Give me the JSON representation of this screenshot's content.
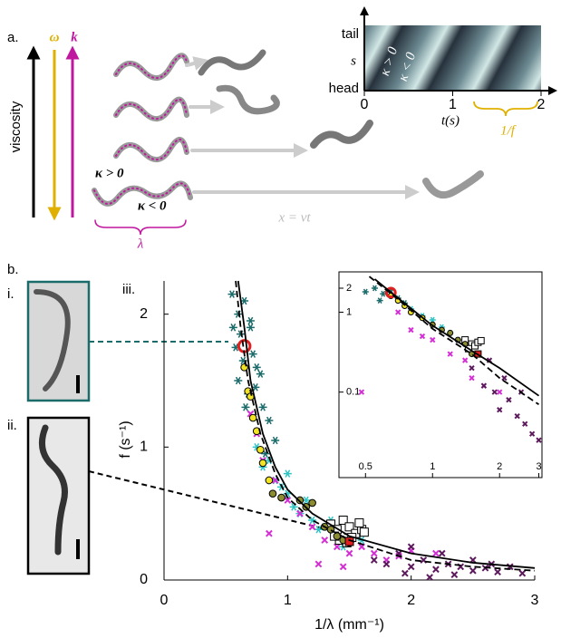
{
  "panel_a": {
    "label": "a.",
    "viscosity": "viscosity",
    "omega": "ω",
    "k": "k",
    "kappa_pos": "κ > 0",
    "kappa_neg": "κ < 0",
    "lambda": "λ",
    "motion": "x = vt",
    "kymograph": {
      "tail": "tail",
      "s": "s",
      "head": "head",
      "xlabel": "t(s)",
      "xlim": [
        0,
        2
      ],
      "xticks": [
        0,
        1,
        2
      ],
      "period": "1/f",
      "kappa_pos": "κ > 0",
      "kappa_neg": "κ < 0"
    }
  },
  "panel_b": {
    "label": "b.",
    "image_i": "i.",
    "image_ii": "ii.",
    "plot_iii": "iii."
  },
  "chart_data": [
    {
      "type": "scatter",
      "xlabel": "1/λ (mm⁻¹)",
      "ylabel": "f (s⁻¹)",
      "xlim": [
        0,
        3
      ],
      "ylim": [
        0,
        2.25
      ],
      "xticks": [
        0,
        1,
        2,
        3
      ],
      "yticks": [
        0,
        1,
        2
      ],
      "series": [
        {
          "marker": "asterisk",
          "color": "#1c6b6b",
          "x": [
            0.55,
            0.6,
            0.62,
            0.65,
            0.7,
            0.72,
            0.75,
            0.6,
            0.68,
            0.8,
            0.58,
            0.7,
            0.78,
            0.85,
            0.64,
            0.74,
            0.9,
            0.66,
            0.56,
            0.82
          ],
          "values": [
            2.15,
            2.0,
            1.85,
            2.1,
            1.95,
            1.7,
            1.6,
            1.5,
            1.4,
            1.3,
            1.75,
            1.9,
            1.55,
            1.2,
            1.65,
            1.45,
            1.05,
            1.3,
            1.9,
            0.95
          ]
        },
        {
          "marker": "asterisk",
          "color": "#2ec4c4",
          "x": [
            0.75,
            0.8,
            0.9,
            1.0,
            1.05,
            1.1,
            0.95,
            1.2,
            1.3,
            1.4,
            1.5,
            0.85,
            1.15,
            1.25,
            1.0,
            1.35,
            1.6,
            1.45
          ],
          "values": [
            1.0,
            0.85,
            0.75,
            0.65,
            0.55,
            0.5,
            0.7,
            0.45,
            0.4,
            0.35,
            0.32,
            0.9,
            0.6,
            0.38,
            0.8,
            0.45,
            0.3,
            0.25
          ]
        },
        {
          "marker": "cross",
          "color": "#d42fd4",
          "x": [
            0.7,
            0.75,
            0.8,
            0.9,
            1.0,
            1.1,
            1.2,
            1.3,
            1.4,
            1.5,
            1.6,
            1.7,
            1.8,
            1.9,
            2.0,
            1.25,
            1.45,
            0.85,
            2.2,
            1.55
          ],
          "values": [
            1.25,
            1.1,
            0.9,
            0.75,
            0.6,
            0.5,
            0.4,
            0.3,
            0.25,
            0.2,
            0.25,
            0.2,
            0.15,
            0.18,
            0.22,
            0.12,
            0.1,
            0.35,
            0.2,
            0.35
          ]
        },
        {
          "marker": "cross",
          "color": "#5c1a5c",
          "x": [
            1.7,
            1.8,
            1.9,
            2.0,
            2.1,
            2.2,
            2.3,
            2.4,
            2.5,
            2.6,
            2.7,
            2.8,
            2.9,
            2.0,
            2.25,
            2.5,
            1.95,
            2.35,
            2.65,
            2.15
          ],
          "values": [
            0.15,
            0.12,
            0.2,
            0.1,
            0.15,
            0.08,
            0.12,
            0.1,
            0.07,
            0.09,
            0.06,
            0.1,
            0.05,
            0.25,
            0.2,
            0.15,
            0.05,
            0.04,
            0.12,
            0.02
          ]
        },
        {
          "marker": "square",
          "color": "#ffffff",
          "x": [
            1.35,
            1.4,
            1.45,
            1.5,
            1.55,
            1.6,
            1.42,
            1.52,
            1.48,
            1.38,
            1.58,
            1.62
          ],
          "values": [
            0.42,
            0.38,
            0.45,
            0.4,
            0.35,
            0.38,
            0.3,
            0.32,
            0.28,
            0.33,
            0.43,
            0.36
          ]
        },
        {
          "marker": "circle",
          "color": "#f2e422",
          "x": [
            0.65,
            0.68,
            0.7,
            0.72,
            0.75,
            0.78,
            0.8,
            0.85
          ],
          "values": [
            1.6,
            1.42,
            1.38,
            1.22,
            1.12,
            0.98,
            0.88,
            0.75
          ]
        },
        {
          "marker": "circle",
          "color": "#8c8c30",
          "x": [
            0.88,
            0.95,
            1.1,
            1.15,
            1.2,
            1.3,
            1.35,
            1.4,
            1.45,
            1.5
          ],
          "values": [
            0.65,
            0.62,
            0.6,
            0.55,
            0.58,
            0.4,
            0.38,
            0.33,
            0.3,
            0.28
          ]
        },
        {
          "marker": "ring",
          "color": "#e02020",
          "x": [
            0.65
          ],
          "values": [
            1.76
          ]
        },
        {
          "marker": "square",
          "color": "#e02020",
          "x": [
            1.5
          ],
          "values": [
            0.29
          ]
        },
        {
          "marker": "line",
          "color": "#000000",
          "x": [
            0.6,
            0.65,
            0.7,
            0.8,
            0.9,
            1.0,
            1.2,
            1.5,
            2.0,
            2.5,
            3.0
          ],
          "values": [
            2.25,
            1.9,
            1.5,
            1.1,
            0.85,
            0.68,
            0.5,
            0.33,
            0.2,
            0.13,
            0.09
          ]
        },
        {
          "marker": "dashed",
          "color": "#000000",
          "x": [
            0.58,
            0.62,
            0.68,
            0.78,
            0.9,
            1.0,
            1.2,
            1.5,
            2.0,
            2.5,
            3.0
          ],
          "values": [
            2.25,
            1.9,
            1.5,
            1.1,
            0.8,
            0.62,
            0.45,
            0.3,
            0.15,
            0.1,
            0.07
          ]
        }
      ]
    },
    {
      "type": "scatter",
      "xlog": true,
      "ylog": true,
      "xlim": [
        0.38,
        3.1
      ],
      "ylim": [
        0.0085,
        3.2
      ],
      "xticks": [
        0.5,
        1,
        2,
        3
      ],
      "yticks": [
        0.1,
        1,
        2
      ],
      "series": [
        {
          "marker": "asterisk",
          "color": "#1c6b6b",
          "x": [
            0.5,
            0.55,
            0.6,
            0.65,
            0.7,
            0.75,
            0.58
          ],
          "values": [
            1.8,
            2.0,
            1.7,
            1.9,
            1.5,
            1.3,
            1.4
          ]
        },
        {
          "marker": "asterisk",
          "color": "#2ec4c4",
          "x": [
            0.8,
            0.9,
            1.0,
            1.1,
            1.2,
            1.3,
            1.4
          ],
          "values": [
            1.1,
            0.9,
            0.8,
            0.65,
            0.55,
            0.45,
            0.4
          ]
        },
        {
          "marker": "cross",
          "color": "#d42fd4",
          "x": [
            0.48,
            0.8,
            0.9,
            1.0,
            1.2,
            1.4,
            1.5,
            1.7,
            2.0,
            0.7
          ],
          "values": [
            0.1,
            0.6,
            0.5,
            0.45,
            0.3,
            0.25,
            0.15,
            0.12,
            0.1,
            1.0
          ]
        },
        {
          "marker": "cross",
          "color": "#5c1a5c",
          "x": [
            1.5,
            1.7,
            1.9,
            2.0,
            2.2,
            2.4,
            2.6,
            2.8,
            2.1,
            2.5,
            3.0,
            1.8
          ],
          "values": [
            0.2,
            0.12,
            0.1,
            0.06,
            0.08,
            0.05,
            0.04,
            0.03,
            0.15,
            0.1,
            0.025,
            0.25
          ]
        },
        {
          "marker": "square",
          "color": "#ffffff",
          "x": [
            1.4,
            1.5,
            1.55,
            1.6,
            1.45,
            1.65
          ],
          "values": [
            0.45,
            0.4,
            0.38,
            0.42,
            0.35,
            0.44
          ]
        },
        {
          "marker": "circle",
          "color": "#f2e422",
          "x": [
            0.65,
            0.7,
            0.75,
            0.8,
            0.9
          ],
          "values": [
            1.6,
            1.4,
            1.2,
            1.0,
            0.85
          ]
        },
        {
          "marker": "circle",
          "color": "#8c8c30",
          "x": [
            1.0,
            1.1,
            1.2,
            1.3,
            1.4,
            1.5
          ],
          "values": [
            0.7,
            0.6,
            0.55,
            0.45,
            0.4,
            0.3
          ]
        },
        {
          "marker": "ring",
          "color": "#e02020",
          "x": [
            0.65
          ],
          "values": [
            1.76
          ]
        },
        {
          "marker": "square",
          "color": "#e02020",
          "x": [
            1.6
          ],
          "values": [
            0.3
          ]
        },
        {
          "marker": "line",
          "color": "#000000",
          "x": [
            0.55,
            0.7,
            1,
            1.5,
            2,
            3
          ],
          "values": [
            2.6,
            1.5,
            0.68,
            0.33,
            0.2,
            0.09
          ]
        },
        {
          "marker": "dashed",
          "color": "#000000",
          "x": [
            0.52,
            0.7,
            1,
            1.5,
            2,
            3
          ],
          "values": [
            2.8,
            1.45,
            0.62,
            0.3,
            0.15,
            0.07
          ]
        }
      ]
    }
  ]
}
